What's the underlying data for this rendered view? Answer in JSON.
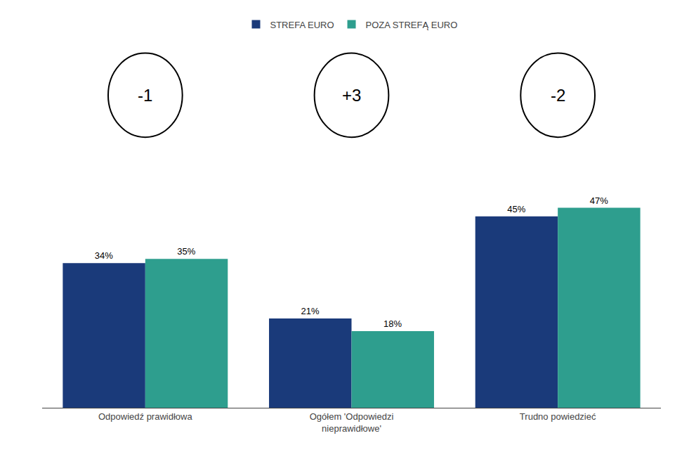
{
  "chart_data": {
    "type": "bar",
    "categories": [
      "Odpowiedź prawidłowa",
      "Ogółem 'Odpowiedzi\nnieprawidłowe'",
      "Trudno powiedzieć"
    ],
    "series": [
      {
        "name": "STREFA EURO",
        "color": "#1a3a7a",
        "values": [
          34,
          21,
          45
        ],
        "value_labels": [
          "34%",
          "21%",
          "45%"
        ]
      },
      {
        "name": "POZA STREFĄ EURO",
        "color": "#2e9e8e",
        "values": [
          35,
          18,
          47
        ],
        "value_labels": [
          "35%",
          "18%",
          "47%"
        ]
      }
    ],
    "annotations": [
      "-1",
      "+3",
      "-2"
    ],
    "ylim": [
      0,
      55
    ],
    "tick_labels": "x",
    "data_labels": true,
    "grid": false,
    "legend": "top"
  }
}
